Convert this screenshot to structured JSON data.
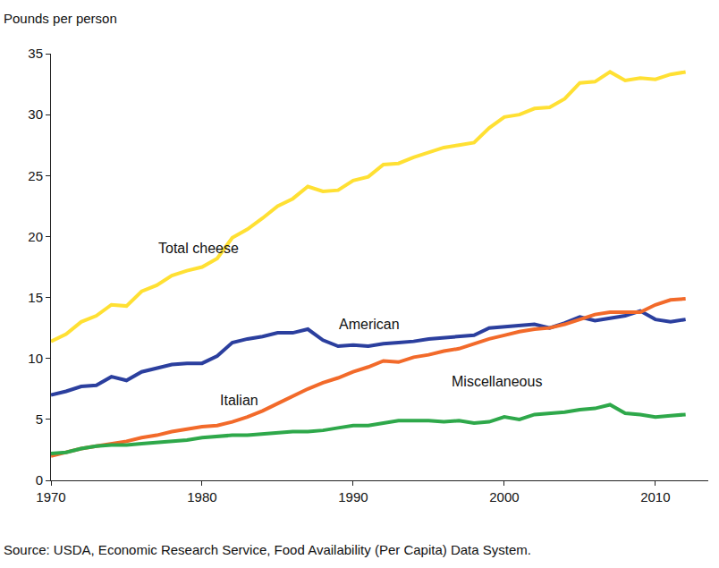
{
  "chart_data": {
    "type": "line",
    "y_label": "Pounds per person",
    "annotations": [
      "Source: USDA, Economic Research Service, Food Availability (Per Capita) Data System."
    ],
    "x": [
      1970,
      1971,
      1972,
      1973,
      1974,
      1975,
      1976,
      1977,
      1978,
      1979,
      1980,
      1981,
      1982,
      1983,
      1984,
      1985,
      1986,
      1987,
      1988,
      1989,
      1990,
      1991,
      1992,
      1993,
      1994,
      1995,
      1996,
      1997,
      1998,
      1999,
      2000,
      2001,
      2002,
      2003,
      2004,
      2005,
      2006,
      2007,
      2008,
      2009,
      2010,
      2011,
      2012
    ],
    "series": [
      {
        "name": "Total cheese",
        "color": "#ffe033",
        "values": [
          11.4,
          12.0,
          13.0,
          13.5,
          14.4,
          14.3,
          15.5,
          16.0,
          16.8,
          17.2,
          17.5,
          18.2,
          19.9,
          20.6,
          21.5,
          22.5,
          23.1,
          24.1,
          23.7,
          23.8,
          24.6,
          24.9,
          25.9,
          26.0,
          26.5,
          26.9,
          27.3,
          27.5,
          27.7,
          28.9,
          29.8,
          30.0,
          30.5,
          30.6,
          31.3,
          32.6,
          32.7,
          33.5,
          32.8,
          33.0,
          32.9,
          33.3,
          33.5
        ]
      },
      {
        "name": "American",
        "color": "#2b3f9e",
        "values": [
          7.0,
          7.3,
          7.7,
          7.8,
          8.5,
          8.2,
          8.9,
          9.2,
          9.5,
          9.6,
          9.6,
          10.2,
          11.3,
          11.6,
          11.8,
          12.1,
          12.1,
          12.4,
          11.5,
          11.0,
          11.1,
          11.0,
          11.2,
          11.3,
          11.4,
          11.6,
          11.7,
          11.8,
          11.9,
          12.5,
          12.6,
          12.7,
          12.8,
          12.5,
          12.9,
          13.4,
          13.1,
          13.3,
          13.5,
          13.9,
          13.2,
          13.0,
          13.2
        ]
      },
      {
        "name": "Italian",
        "color": "#f26a2a",
        "values": [
          2.0,
          2.3,
          2.6,
          2.8,
          3.0,
          3.2,
          3.5,
          3.7,
          4.0,
          4.2,
          4.4,
          4.5,
          4.8,
          5.2,
          5.7,
          6.3,
          6.9,
          7.5,
          8.0,
          8.4,
          8.9,
          9.3,
          9.8,
          9.7,
          10.1,
          10.3,
          10.6,
          10.8,
          11.2,
          11.6,
          11.9,
          12.2,
          12.4,
          12.5,
          12.8,
          13.2,
          13.6,
          13.8,
          13.8,
          13.8,
          14.4,
          14.8,
          14.9
        ]
      },
      {
        "name": "Miscellaneous",
        "color": "#2ea84a",
        "values": [
          2.2,
          2.3,
          2.6,
          2.8,
          2.9,
          2.9,
          3.0,
          3.1,
          3.2,
          3.3,
          3.5,
          3.6,
          3.7,
          3.7,
          3.8,
          3.9,
          4.0,
          4.0,
          4.1,
          4.3,
          4.5,
          4.5,
          4.7,
          4.9,
          4.9,
          4.9,
          4.8,
          4.9,
          4.7,
          4.8,
          5.2,
          5.0,
          5.4,
          5.5,
          5.6,
          5.8,
          5.9,
          6.2,
          5.5,
          5.4,
          5.2,
          5.3,
          5.4
        ]
      }
    ],
    "xlim": [
      1970,
      2013.5
    ],
    "xticks": [
      1970,
      1980,
      1990,
      2000,
      2010
    ],
    "ylim": [
      0,
      35
    ],
    "yticks": [
      0,
      5,
      10,
      15,
      20,
      25,
      30,
      35
    ],
    "grid": false
  }
}
